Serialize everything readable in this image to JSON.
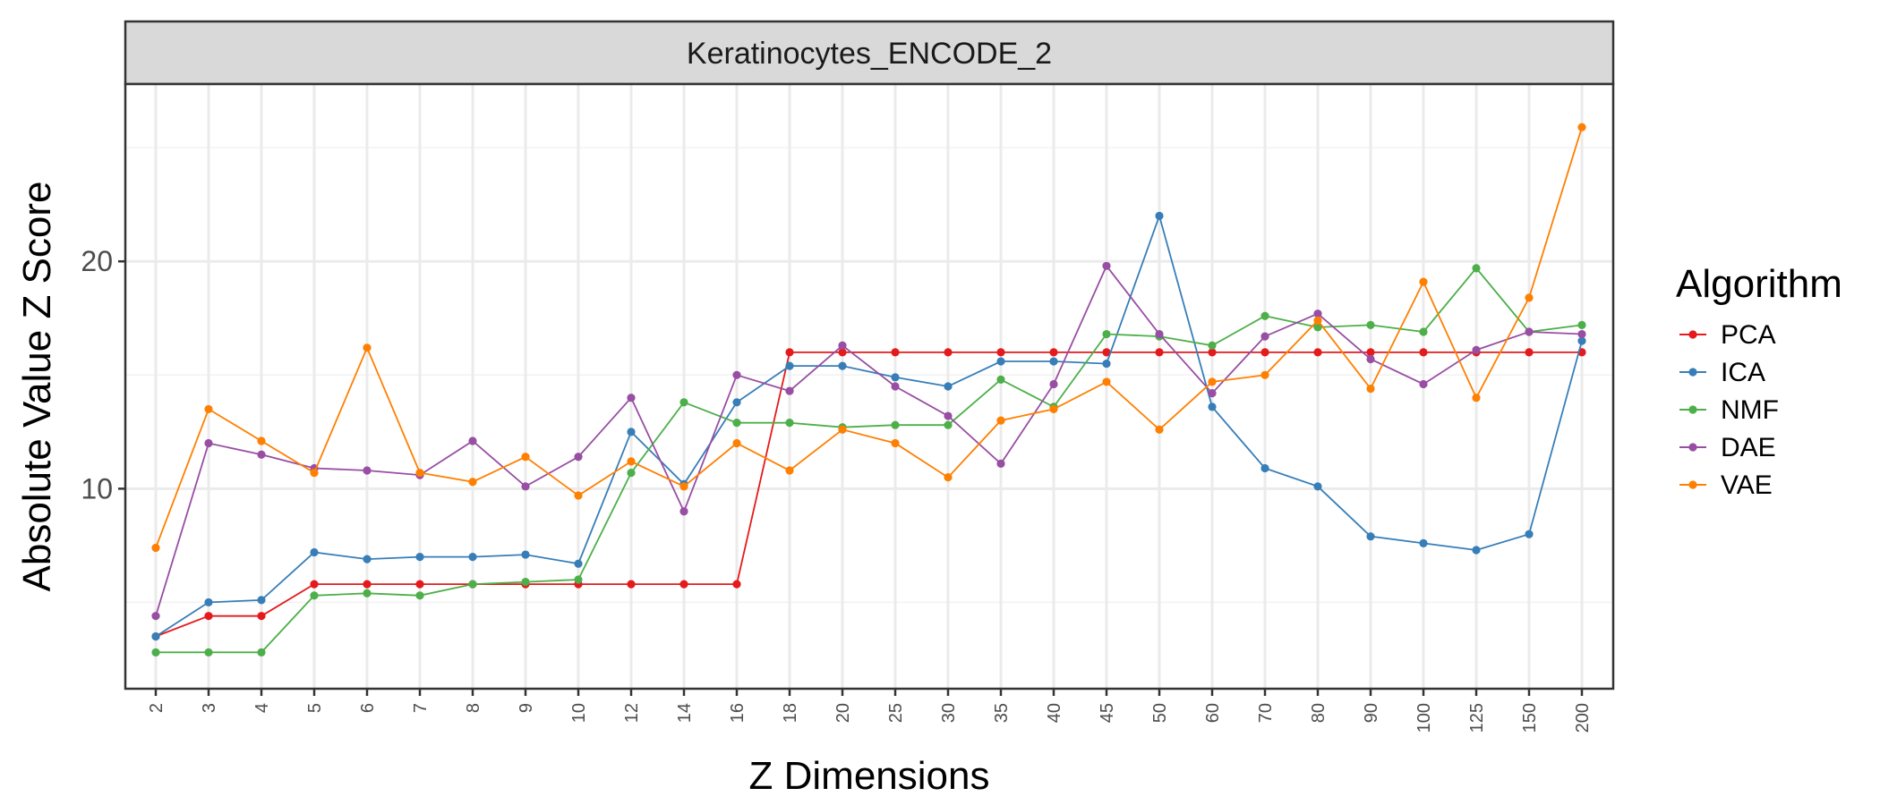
{
  "chart_data": {
    "type": "line",
    "title": "",
    "facet_label": "Keratinocytes_ENCODE_2",
    "xlabel": "Z Dimensions",
    "ylabel": "Absolute Value Z Score",
    "categories": [
      "2",
      "3",
      "4",
      "5",
      "6",
      "7",
      "8",
      "9",
      "10",
      "12",
      "14",
      "16",
      "18",
      "20",
      "25",
      "30",
      "35",
      "40",
      "45",
      "50",
      "60",
      "70",
      "80",
      "90",
      "100",
      "125",
      "150",
      "200"
    ],
    "yticks": [
      10,
      20
    ],
    "ylim": [
      1.2,
      27.8
    ],
    "grid": true,
    "legend": {
      "title": "Algorithm",
      "position": "right"
    },
    "series": [
      {
        "name": "PCA",
        "color": "#e41a1c",
        "values": [
          3.5,
          4.4,
          4.4,
          5.8,
          5.8,
          5.8,
          5.8,
          5.8,
          5.8,
          5.8,
          5.8,
          5.8,
          16.0,
          16.0,
          16.0,
          16.0,
          16.0,
          16.0,
          16.0,
          16.0,
          16.0,
          16.0,
          16.0,
          16.0,
          16.0,
          16.0,
          16.0,
          16.0
        ]
      },
      {
        "name": "ICA",
        "color": "#377eb8",
        "values": [
          3.5,
          5.0,
          5.1,
          7.2,
          6.9,
          7.0,
          7.0,
          7.1,
          6.7,
          12.5,
          10.2,
          13.8,
          15.4,
          15.4,
          14.9,
          14.5,
          15.6,
          15.6,
          15.5,
          22.0,
          13.6,
          10.9,
          10.1,
          7.9,
          7.6,
          7.3,
          8.0,
          16.5
        ]
      },
      {
        "name": "NMF",
        "color": "#4daf4a",
        "values": [
          2.8,
          2.8,
          2.8,
          5.3,
          5.4,
          5.3,
          5.8,
          5.9,
          6.0,
          10.7,
          13.8,
          12.9,
          12.9,
          12.7,
          12.8,
          12.8,
          14.8,
          13.6,
          16.8,
          16.7,
          16.3,
          17.6,
          17.1,
          17.2,
          16.9,
          19.7,
          16.9,
          17.2
        ]
      },
      {
        "name": "DAE",
        "color": "#984ea3",
        "values": [
          4.4,
          12.0,
          11.5,
          10.9,
          10.8,
          10.6,
          12.1,
          10.1,
          11.4,
          14.0,
          9.0,
          15.0,
          14.3,
          16.3,
          14.5,
          13.2,
          11.1,
          14.6,
          19.8,
          16.8,
          14.2,
          16.7,
          17.7,
          15.7,
          14.6,
          16.1,
          16.9,
          16.8
        ]
      },
      {
        "name": "VAE",
        "color": "#ff7f00",
        "values": [
          7.4,
          13.5,
          12.1,
          10.7,
          16.2,
          10.7,
          10.3,
          11.4,
          9.7,
          11.2,
          10.1,
          12.0,
          10.8,
          12.6,
          12.0,
          10.5,
          13.0,
          13.5,
          14.7,
          12.6,
          14.7,
          15.0,
          17.4,
          14.4,
          19.1,
          14.0,
          18.4,
          25.9
        ]
      }
    ]
  }
}
